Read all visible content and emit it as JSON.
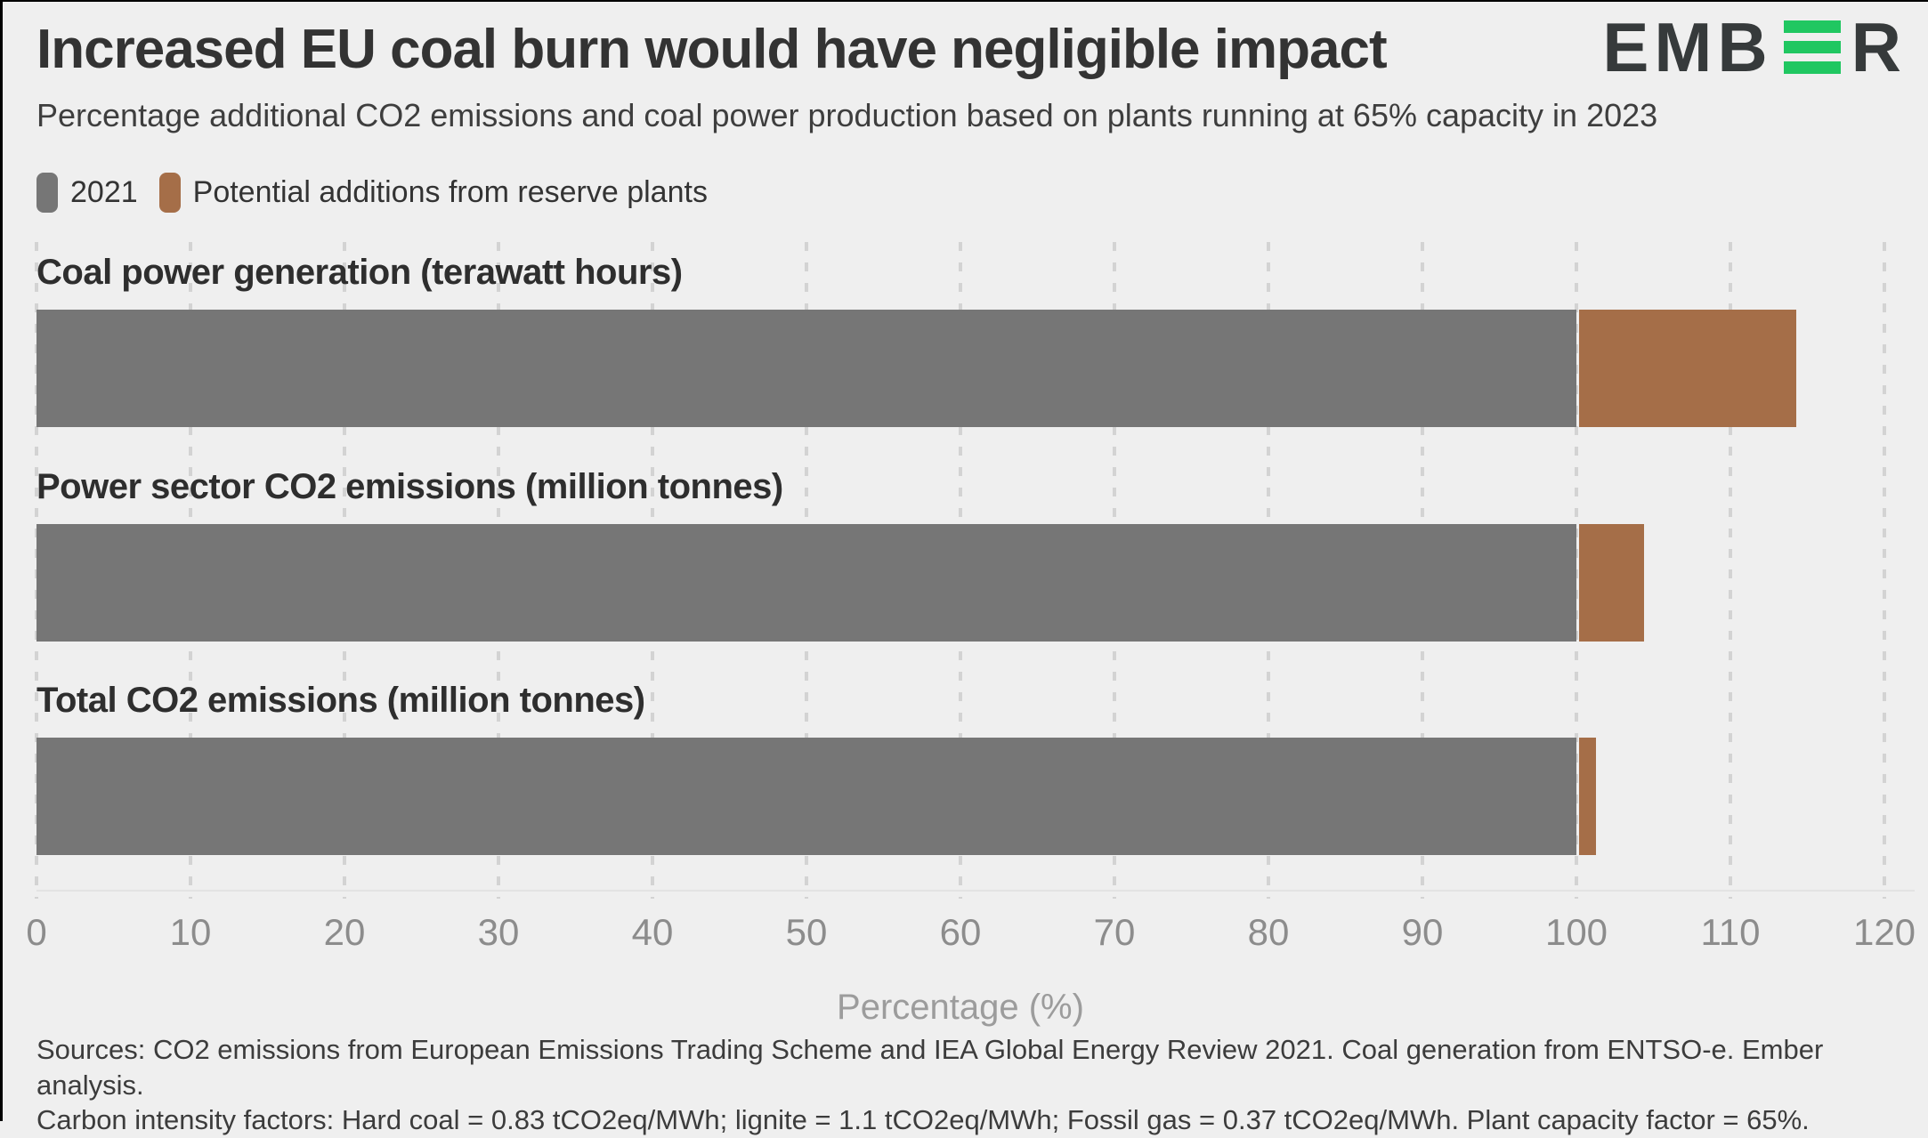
{
  "header": {
    "title": "Increased EU coal burn would have negligible impact",
    "subtitle": "Percentage additional CO2 emissions and coal power production based on plants running at 65% capacity in 2023",
    "logo": {
      "text_before": "EMB",
      "text_after": "R",
      "green": "#20c761",
      "dark": "#363a3b"
    }
  },
  "legend": [
    {
      "label": "2021",
      "color": "#767676"
    },
    {
      "label": "Potential additions from reserve plants",
      "color": "#a56e48"
    }
  ],
  "chart_data": {
    "type": "bar",
    "orientation": "horizontal",
    "stacked": true,
    "title": "Increased EU coal burn would have negligible impact",
    "subtitle": "Percentage additional CO2 emissions and coal power production based on plants running at 65% capacity in 2023",
    "categories": [
      "Coal power generation (terawatt hours)",
      "Power sector CO2 emissions (million tonnes)",
      "Total CO2 emissions (million tonnes)"
    ],
    "series": [
      {
        "name": "2021",
        "values": [
          100,
          100,
          100
        ],
        "color": "#767676"
      },
      {
        "name": "Potential additions from reserve plants",
        "values": [
          14.3,
          4.4,
          1.3
        ],
        "color": "#a56e48"
      }
    ],
    "xlabel": "Percentage (%)",
    "xlim": [
      0,
      120
    ],
    "xticks": [
      0,
      10,
      20,
      30,
      40,
      50,
      60,
      70,
      80,
      90,
      100,
      110,
      120
    ],
    "grid": "vertical-dashed",
    "legend_position": "top-left"
  },
  "footer": {
    "line1": "Sources: CO2 emissions from European Emissions Trading Scheme and IEA Global Energy Review 2021. Coal generation from ENTSO-e. Ember analysis.",
    "line2": "Carbon intensity factors: Hard coal = 0.83 tCO2eq/MWh; lignite = 1.1 tCO2eq/MWh; Fossil gas = 0.37 tCO2eq/MWh. Plant capacity factor = 65%."
  }
}
